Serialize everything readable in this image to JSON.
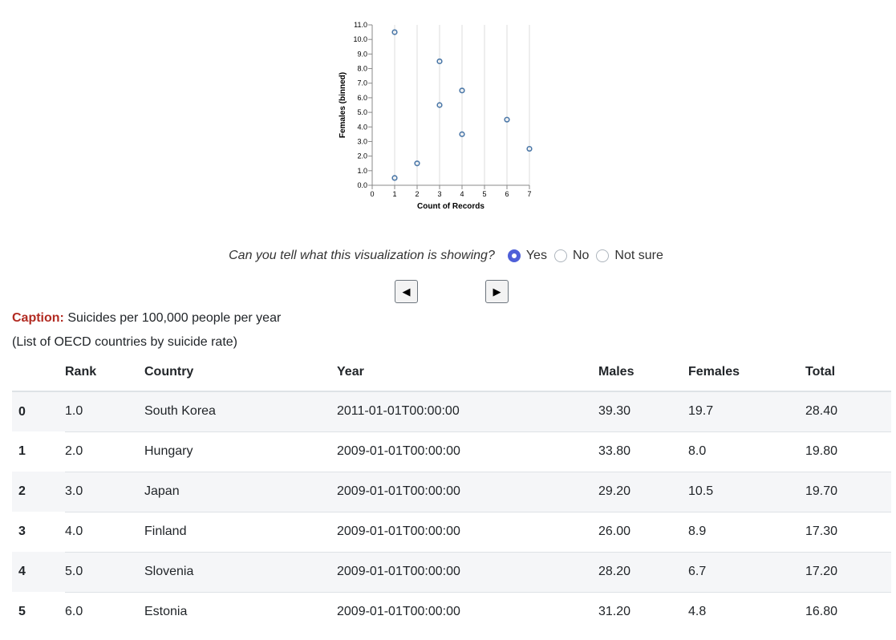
{
  "chart_data": {
    "type": "scatter",
    "xlabel": "Count of Records",
    "ylabel": "Females (binned)",
    "xlim": [
      0,
      7
    ],
    "ylim": [
      0,
      11
    ],
    "x_ticks": [
      "0",
      "1",
      "2",
      "3",
      "4",
      "5",
      "6",
      "7"
    ],
    "y_ticks": [
      "0.0",
      "1.0",
      "2.0",
      "3.0",
      "4.0",
      "5.0",
      "6.0",
      "7.0",
      "8.0",
      "9.0",
      "10.0",
      "11.0"
    ],
    "grid": "vertical",
    "point_color": "#4c78a8",
    "points": [
      {
        "x": 1,
        "y": 10.5
      },
      {
        "x": 1,
        "y": 0.5
      },
      {
        "x": 2,
        "y": 1.5
      },
      {
        "x": 3,
        "y": 8.5
      },
      {
        "x": 3,
        "y": 5.5
      },
      {
        "x": 4,
        "y": 6.5
      },
      {
        "x": 4,
        "y": 3.5
      },
      {
        "x": 6,
        "y": 4.5
      },
      {
        "x": 7,
        "y": 2.5
      }
    ]
  },
  "question": {
    "text": "Can you tell what this visualization is showing?",
    "options": [
      {
        "label": "Yes",
        "selected": true
      },
      {
        "label": "No",
        "selected": false
      },
      {
        "label": "Not sure",
        "selected": false
      }
    ]
  },
  "nav": {
    "prev_symbol": "◀",
    "next_symbol": "▶"
  },
  "caption": {
    "label": "Caption:",
    "text": "Suicides per 100,000 people per year",
    "subtitle": "(List of OECD countries by suicide rate)"
  },
  "table": {
    "columns": [
      "",
      "Rank",
      "Country",
      "Year",
      "Males",
      "Females",
      "Total"
    ],
    "rows": [
      [
        "0",
        "1.0",
        "South Korea",
        "2011-01-01T00:00:00",
        "39.30",
        "19.7",
        "28.40"
      ],
      [
        "1",
        "2.0",
        "Hungary",
        "2009-01-01T00:00:00",
        "33.80",
        "8.0",
        "19.80"
      ],
      [
        "2",
        "3.0",
        "Japan",
        "2009-01-01T00:00:00",
        "29.20",
        "10.5",
        "19.70"
      ],
      [
        "3",
        "4.0",
        "Finland",
        "2009-01-01T00:00:00",
        "26.00",
        "8.9",
        "17.30"
      ],
      [
        "4",
        "5.0",
        "Slovenia",
        "2009-01-01T00:00:00",
        "28.20",
        "6.7",
        "17.20"
      ],
      [
        "5",
        "6.0",
        "Estonia",
        "2009-01-01T00:00:00",
        "31.20",
        "4.8",
        "16.80"
      ]
    ]
  }
}
